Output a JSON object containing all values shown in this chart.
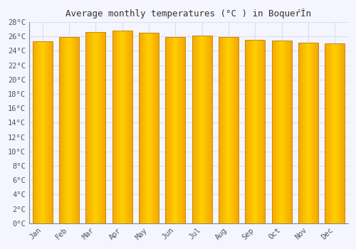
{
  "months": [
    "Jan",
    "Feb",
    "Mar",
    "Apr",
    "May",
    "Jun",
    "Jul",
    "Aug",
    "Sep",
    "Oct",
    "Nov",
    "Dec"
  ],
  "values": [
    25.3,
    25.9,
    26.6,
    26.8,
    26.5,
    25.9,
    26.1,
    25.9,
    25.5,
    25.4,
    25.1,
    25.0
  ],
  "title": "Average monthly temperatures (°C ) in BoqueŕÍn",
  "bar_color_center": "#FFD000",
  "bar_color_edge": "#F5A800",
  "bar_edge_color": "#C8880A",
  "ylim": [
    0,
    28
  ],
  "ytick_step": 2,
  "background_color": "#f5f5ff",
  "plot_bg_color": "#f5f5ff",
  "grid_color": "#ddddee",
  "font_family": "monospace",
  "title_fontsize": 9,
  "tick_fontsize": 7.5
}
